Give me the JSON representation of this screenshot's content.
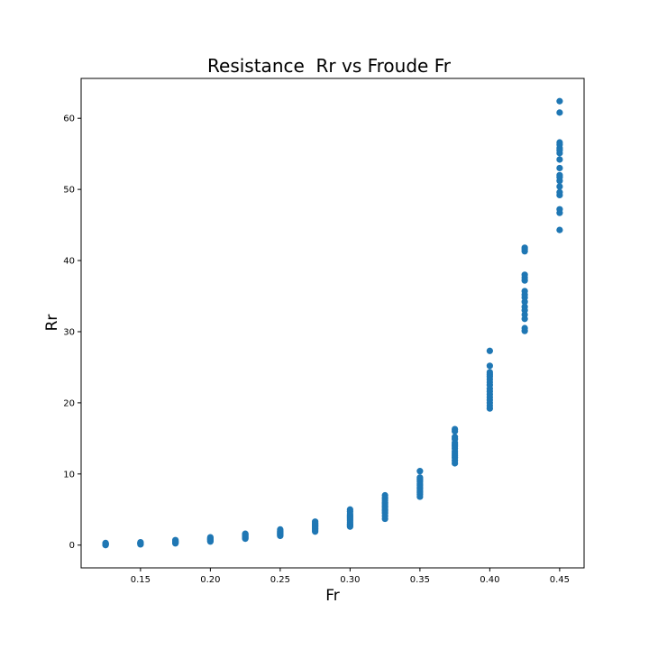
{
  "chart_data": {
    "type": "scatter",
    "title": "Resistance  Rr vs Froude Fr",
    "xlabel": "Fr",
    "ylabel": "Rr",
    "xlim": [
      0.1075,
      0.4675
    ],
    "ylim": [
      -3.2,
      65.6
    ],
    "xticks": [
      0.15,
      0.2,
      0.25,
      0.3,
      0.35,
      0.4,
      0.45
    ],
    "xtick_labels": [
      "0.15",
      "0.20",
      "0.25",
      "0.30",
      "0.35",
      "0.40",
      "0.45"
    ],
    "yticks": [
      0,
      10,
      20,
      30,
      40,
      50,
      60
    ],
    "ytick_labels": [
      "0",
      "10",
      "20",
      "30",
      "40",
      "50",
      "60"
    ],
    "grid": false,
    "color": "#1f77b4",
    "series": [
      {
        "x": [
          0.125,
          0.125,
          0.125,
          0.125,
          0.125,
          0.125,
          0.125,
          0.15,
          0.15,
          0.15,
          0.15,
          0.15,
          0.15,
          0.15,
          0.175,
          0.175,
          0.175,
          0.175,
          0.175,
          0.175,
          0.175,
          0.175,
          0.2,
          0.2,
          0.2,
          0.2,
          0.2,
          0.2,
          0.2,
          0.2,
          0.225,
          0.225,
          0.225,
          0.225,
          0.225,
          0.225,
          0.225,
          0.225,
          0.25,
          0.25,
          0.25,
          0.25,
          0.25,
          0.25,
          0.25,
          0.25,
          0.25,
          0.275,
          0.275,
          0.275,
          0.275,
          0.275,
          0.275,
          0.275,
          0.275,
          0.275,
          0.275,
          0.3,
          0.3,
          0.3,
          0.3,
          0.3,
          0.3,
          0.3,
          0.3,
          0.3,
          0.3,
          0.3,
          0.3,
          0.325,
          0.325,
          0.325,
          0.325,
          0.325,
          0.325,
          0.325,
          0.325,
          0.325,
          0.325,
          0.325,
          0.325,
          0.35,
          0.35,
          0.35,
          0.35,
          0.35,
          0.35,
          0.35,
          0.35,
          0.35,
          0.35,
          0.35,
          0.35,
          0.35,
          0.375,
          0.375,
          0.375,
          0.375,
          0.375,
          0.375,
          0.375,
          0.375,
          0.375,
          0.375,
          0.375,
          0.375,
          0.375,
          0.375,
          0.4,
          0.4,
          0.4,
          0.4,
          0.4,
          0.4,
          0.4,
          0.4,
          0.4,
          0.4,
          0.4,
          0.4,
          0.4,
          0.4,
          0.4,
          0.4,
          0.425,
          0.425,
          0.425,
          0.425,
          0.425,
          0.425,
          0.425,
          0.425,
          0.425,
          0.425,
          0.425,
          0.425,
          0.425,
          0.425,
          0.425,
          0.425,
          0.45,
          0.45,
          0.45,
          0.45,
          0.45,
          0.45,
          0.45,
          0.45,
          0.45,
          0.45,
          0.45,
          0.45,
          0.45,
          0.45,
          0.45,
          0.45,
          0.45,
          0.45
        ],
        "y": [
          0.0,
          0.05,
          0.1,
          0.15,
          0.2,
          0.25,
          0.3,
          0.1,
          0.15,
          0.2,
          0.25,
          0.3,
          0.35,
          0.4,
          0.25,
          0.3,
          0.35,
          0.4,
          0.5,
          0.55,
          0.6,
          0.7,
          0.5,
          0.6,
          0.7,
          0.8,
          0.85,
          0.9,
          1.0,
          1.1,
          0.9,
          1.0,
          1.1,
          1.2,
          1.3,
          1.4,
          1.5,
          1.6,
          1.3,
          1.4,
          1.5,
          1.6,
          1.7,
          1.8,
          1.9,
          2.0,
          2.2,
          1.9,
          2.1,
          2.3,
          2.4,
          2.6,
          2.7,
          2.8,
          3.0,
          3.1,
          3.3,
          2.6,
          2.8,
          3.0,
          3.2,
          3.4,
          3.6,
          3.8,
          4.0,
          4.2,
          4.4,
          4.7,
          5.0,
          3.7,
          4.1,
          4.5,
          4.8,
          5.0,
          5.3,
          5.5,
          5.8,
          6.0,
          6.3,
          6.6,
          7.0,
          6.8,
          7.1,
          7.4,
          7.6,
          7.9,
          8.1,
          8.4,
          8.6,
          8.9,
          9.1,
          9.3,
          9.5,
          10.4,
          11.5,
          11.9,
          12.3,
          12.6,
          12.9,
          13.2,
          13.6,
          13.9,
          14.1,
          14.4,
          14.9,
          15.2,
          16.0,
          16.3,
          19.2,
          19.6,
          20.0,
          20.4,
          20.8,
          21.2,
          21.6,
          22.0,
          22.5,
          22.9,
          23.3,
          23.7,
          24.0,
          24.3,
          25.2,
          27.3,
          30.1,
          30.5,
          31.8,
          32.4,
          33.0,
          33.5,
          34.2,
          34.8,
          35.2,
          35.7,
          37.2,
          37.6,
          38.0,
          41.3,
          41.6,
          41.8,
          44.3,
          46.7,
          47.2,
          49.2,
          49.6,
          50.4,
          51.2,
          51.7,
          52.0,
          53.0,
          54.2,
          55.1,
          55.5,
          55.8,
          56.3,
          56.6,
          60.8,
          62.4
        ]
      }
    ]
  }
}
